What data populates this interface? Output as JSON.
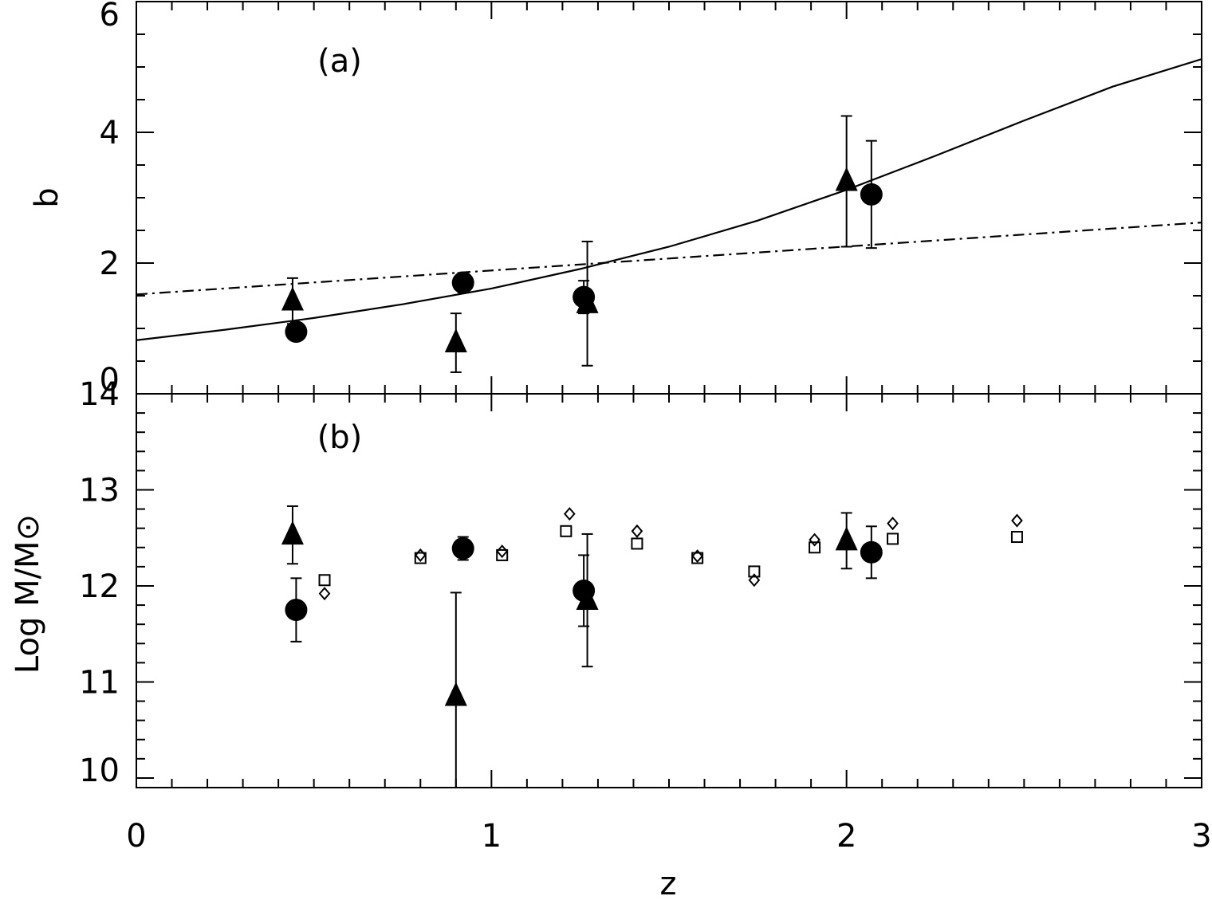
{
  "chart_data": [
    {
      "panel": "(a)",
      "type": "scatter",
      "xlabel": "z",
      "ylabel": "b",
      "xlim": [
        0,
        3
      ],
      "ylim": [
        0,
        6
      ],
      "x_ticks": [
        "0",
        "1",
        "2",
        "3"
      ],
      "y_ticks": [
        "0",
        "2",
        "4",
        "6"
      ],
      "series": [
        {
          "marker": "filled-circle",
          "points": [
            {
              "x": 0.45,
              "y": 0.95,
              "err": 0.12
            },
            {
              "x": 0.92,
              "y": 1.7,
              "err": 0.15
            },
            {
              "x": 1.26,
              "y": 1.48,
              "err": 0.25
            },
            {
              "x": 2.07,
              "y": 3.05,
              "err": 0.82
            }
          ]
        },
        {
          "marker": "filled-triangle",
          "points": [
            {
              "x": 0.44,
              "y": 1.42,
              "err": 0.35
            },
            {
              "x": 0.9,
              "y": 0.78,
              "err": 0.45
            },
            {
              "x": 1.27,
              "y": 1.38,
              "err": 0.95
            },
            {
              "x": 2.0,
              "y": 3.25,
              "err": 1.0
            }
          ]
        }
      ],
      "curves": [
        {
          "style": "solid",
          "x": [
            0,
            0.25,
            0.5,
            0.75,
            1.0,
            1.25,
            1.5,
            1.75,
            2.0,
            2.25,
            2.5,
            2.75,
            3.0
          ],
          "y": [
            0.82,
            0.98,
            1.16,
            1.37,
            1.61,
            1.91,
            2.25,
            2.65,
            3.12,
            3.64,
            4.18,
            4.7,
            5.12
          ]
        },
        {
          "style": "dash-dot",
          "x": [
            0,
            3
          ],
          "y": [
            1.52,
            2.62
          ]
        }
      ]
    },
    {
      "panel": "(b)",
      "type": "scatter",
      "xlabel": "z",
      "ylabel": "Log M/M⊙",
      "xlim": [
        0,
        3
      ],
      "ylim": [
        9.9,
        14
      ],
      "x_ticks": [
        "0",
        "1",
        "2",
        "3"
      ],
      "y_ticks": [
        "10",
        "11",
        "12",
        "13",
        "14"
      ],
      "series": [
        {
          "marker": "filled-circle",
          "points": [
            {
              "x": 0.45,
              "y": 11.75,
              "err": 0.33
            },
            {
              "x": 0.92,
              "y": 12.39,
              "err": 0.12
            },
            {
              "x": 1.26,
              "y": 11.95,
              "err": 0.37
            },
            {
              "x": 2.07,
              "y": 12.35,
              "err": 0.27
            }
          ]
        },
        {
          "marker": "filled-triangle",
          "points": [
            {
              "x": 0.44,
              "y": 12.53,
              "err": 0.3
            },
            {
              "x": 0.9,
              "y": 10.85,
              "err": 1.08
            },
            {
              "x": 1.27,
              "y": 11.85,
              "err": 0.69
            },
            {
              "x": 2.0,
              "y": 12.47,
              "err": 0.29
            }
          ]
        },
        {
          "marker": "open-square",
          "points": [
            {
              "x": 0.53,
              "y": 12.06
            },
            {
              "x": 0.8,
              "y": 12.29
            },
            {
              "x": 1.03,
              "y": 12.32
            },
            {
              "x": 1.21,
              "y": 12.57
            },
            {
              "x": 1.41,
              "y": 12.44
            },
            {
              "x": 1.58,
              "y": 12.29
            },
            {
              "x": 1.74,
              "y": 12.15
            },
            {
              "x": 1.91,
              "y": 12.4
            },
            {
              "x": 2.13,
              "y": 12.49
            },
            {
              "x": 2.48,
              "y": 12.51
            }
          ]
        },
        {
          "marker": "open-diamond",
          "points": [
            {
              "x": 0.53,
              "y": 11.92
            },
            {
              "x": 0.8,
              "y": 12.32
            },
            {
              "x": 1.03,
              "y": 12.36
            },
            {
              "x": 1.22,
              "y": 12.75
            },
            {
              "x": 1.41,
              "y": 12.57
            },
            {
              "x": 1.58,
              "y": 12.31
            },
            {
              "x": 1.74,
              "y": 12.06
            },
            {
              "x": 1.91,
              "y": 12.48
            },
            {
              "x": 2.13,
              "y": 12.65
            },
            {
              "x": 2.48,
              "y": 12.68
            }
          ]
        }
      ]
    }
  ]
}
